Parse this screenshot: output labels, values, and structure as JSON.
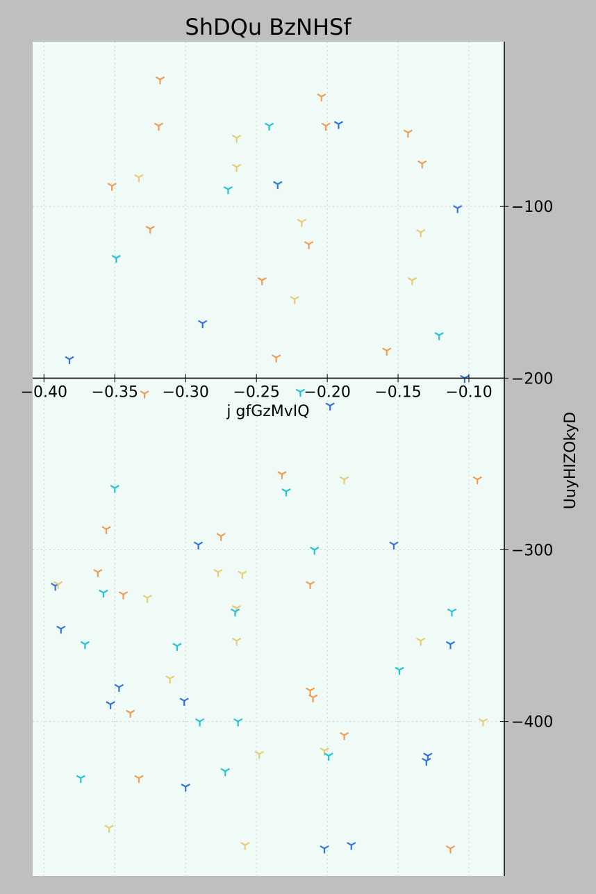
{
  "chart_data": {
    "type": "scatter",
    "title": "ShDQu BzNHSf",
    "xlabel": "j gfGzMvIQ",
    "ylabel": "UuyHIZOkyD",
    "xlim": [
      -0.408,
      -0.075
    ],
    "ylim": [
      -490,
      -4
    ],
    "x_ticks": [
      -0.4,
      -0.35,
      -0.3,
      -0.25,
      -0.2,
      -0.15,
      -0.1
    ],
    "x_tick_labels": [
      "−0.40",
      "−0.35",
      "−0.30",
      "−0.25",
      "−0.20",
      "−0.15",
      "−0.10"
    ],
    "y_ticks": [
      -100,
      -200,
      -300,
      -400
    ],
    "y_tick_labels": [
      "−100",
      "−200",
      "−300",
      "−400"
    ],
    "x_axis_position": "middle, at y = -200",
    "y_axis_position": "right",
    "grid": true,
    "marker": "tri_down",
    "colors": {
      "background": "#bfbfbf",
      "plot_background": "#f0faf7",
      "orange": "#f59b51",
      "yellow": "#e4ce6f",
      "cyan": "#22c4d9",
      "blue": "#2f74e0"
    },
    "points": [
      {
        "x": -0.318,
        "y": -26,
        "color": "orange"
      },
      {
        "x": -0.204,
        "y": -36,
        "color": "orange"
      },
      {
        "x": -0.319,
        "y": -53,
        "color": "orange"
      },
      {
        "x": -0.241,
        "y": -53,
        "color": "cyan"
      },
      {
        "x": -0.201,
        "y": -53,
        "color": "orange"
      },
      {
        "x": -0.192,
        "y": -52,
        "color": "blue"
      },
      {
        "x": -0.143,
        "y": -57,
        "color": "orange"
      },
      {
        "x": -0.264,
        "y": -60,
        "color": "yellow"
      },
      {
        "x": -0.133,
        "y": -75,
        "color": "orange"
      },
      {
        "x": -0.264,
        "y": -77,
        "color": "yellow"
      },
      {
        "x": -0.333,
        "y": -83,
        "color": "yellow"
      },
      {
        "x": -0.352,
        "y": -88,
        "color": "orange"
      },
      {
        "x": -0.27,
        "y": -90,
        "color": "cyan"
      },
      {
        "x": -0.235,
        "y": -87,
        "color": "blue"
      },
      {
        "x": -0.108,
        "y": -101,
        "color": "blue"
      },
      {
        "x": -0.218,
        "y": -109,
        "color": "yellow"
      },
      {
        "x": -0.325,
        "y": -113,
        "color": "orange"
      },
      {
        "x": -0.134,
        "y": -115,
        "color": "yellow"
      },
      {
        "x": -0.213,
        "y": -122,
        "color": "orange"
      },
      {
        "x": -0.349,
        "y": -130,
        "color": "cyan"
      },
      {
        "x": -0.246,
        "y": -143,
        "color": "orange"
      },
      {
        "x": -0.14,
        "y": -143,
        "color": "yellow"
      },
      {
        "x": -0.223,
        "y": -154,
        "color": "yellow"
      },
      {
        "x": -0.288,
        "y": -168,
        "color": "blue"
      },
      {
        "x": -0.121,
        "y": -175,
        "color": "cyan"
      },
      {
        "x": -0.158,
        "y": -184,
        "color": "orange"
      },
      {
        "x": -0.382,
        "y": -189,
        "color": "blue"
      },
      {
        "x": -0.236,
        "y": -188,
        "color": "orange"
      },
      {
        "x": -0.103,
        "y": -200,
        "color": "blue"
      },
      {
        "x": -0.329,
        "y": -209,
        "color": "orange"
      },
      {
        "x": -0.219,
        "y": -208,
        "color": "cyan"
      },
      {
        "x": -0.198,
        "y": -216,
        "color": "blue"
      },
      {
        "x": -0.232,
        "y": -256,
        "color": "orange"
      },
      {
        "x": -0.188,
        "y": -259,
        "color": "yellow"
      },
      {
        "x": -0.094,
        "y": -259,
        "color": "orange"
      },
      {
        "x": -0.35,
        "y": -264,
        "color": "cyan"
      },
      {
        "x": -0.229,
        "y": -266,
        "color": "cyan"
      },
      {
        "x": -0.356,
        "y": -288,
        "color": "orange"
      },
      {
        "x": -0.275,
        "y": -292,
        "color": "orange"
      },
      {
        "x": -0.291,
        "y": -297,
        "color": "blue"
      },
      {
        "x": -0.153,
        "y": -297,
        "color": "blue"
      },
      {
        "x": -0.209,
        "y": -300,
        "color": "cyan"
      },
      {
        "x": -0.362,
        "y": -313,
        "color": "orange"
      },
      {
        "x": -0.277,
        "y": -313,
        "color": "yellow"
      },
      {
        "x": -0.26,
        "y": -314,
        "color": "yellow"
      },
      {
        "x": -0.392,
        "y": -321,
        "color": "blue"
      },
      {
        "x": -0.39,
        "y": -320,
        "color": "yellow"
      },
      {
        "x": -0.212,
        "y": -320,
        "color": "orange"
      },
      {
        "x": -0.358,
        "y": -325,
        "color": "cyan"
      },
      {
        "x": -0.344,
        "y": -326,
        "color": "orange"
      },
      {
        "x": -0.327,
        "y": -328,
        "color": "yellow"
      },
      {
        "x": -0.264,
        "y": -334,
        "color": "yellow"
      },
      {
        "x": -0.265,
        "y": -336,
        "color": "cyan"
      },
      {
        "x": -0.112,
        "y": -336,
        "color": "cyan"
      },
      {
        "x": -0.388,
        "y": -346,
        "color": "blue"
      },
      {
        "x": -0.371,
        "y": -355,
        "color": "cyan"
      },
      {
        "x": -0.306,
        "y": -356,
        "color": "cyan"
      },
      {
        "x": -0.264,
        "y": -353,
        "color": "yellow"
      },
      {
        "x": -0.134,
        "y": -353,
        "color": "yellow"
      },
      {
        "x": -0.113,
        "y": -355,
        "color": "blue"
      },
      {
        "x": -0.149,
        "y": -370,
        "color": "cyan"
      },
      {
        "x": -0.311,
        "y": -375,
        "color": "yellow"
      },
      {
        "x": -0.347,
        "y": -380,
        "color": "blue"
      },
      {
        "x": -0.212,
        "y": -382,
        "color": "orange"
      },
      {
        "x": -0.21,
        "y": -386,
        "color": "orange"
      },
      {
        "x": -0.353,
        "y": -390,
        "color": "blue"
      },
      {
        "x": -0.301,
        "y": -388,
        "color": "blue"
      },
      {
        "x": -0.339,
        "y": -395,
        "color": "orange"
      },
      {
        "x": -0.29,
        "y": -400,
        "color": "cyan"
      },
      {
        "x": -0.263,
        "y": -400,
        "color": "cyan"
      },
      {
        "x": -0.09,
        "y": -400,
        "color": "yellow"
      },
      {
        "x": -0.188,
        "y": -408,
        "color": "orange"
      },
      {
        "x": -0.202,
        "y": -417,
        "color": "yellow"
      },
      {
        "x": -0.248,
        "y": -419,
        "color": "yellow"
      },
      {
        "x": -0.199,
        "y": -420,
        "color": "cyan"
      },
      {
        "x": -0.129,
        "y": -420,
        "color": "blue"
      },
      {
        "x": -0.13,
        "y": -423,
        "color": "blue"
      },
      {
        "x": -0.272,
        "y": -429,
        "color": "cyan"
      },
      {
        "x": -0.374,
        "y": -433,
        "color": "cyan"
      },
      {
        "x": -0.333,
        "y": -433,
        "color": "orange"
      },
      {
        "x": -0.3,
        "y": -438,
        "color": "blue"
      },
      {
        "x": -0.354,
        "y": -462,
        "color": "yellow"
      },
      {
        "x": -0.258,
        "y": -472,
        "color": "yellow"
      },
      {
        "x": -0.202,
        "y": -474,
        "color": "blue"
      },
      {
        "x": -0.183,
        "y": -472,
        "color": "blue"
      },
      {
        "x": -0.113,
        "y": -474,
        "color": "orange"
      }
    ]
  }
}
